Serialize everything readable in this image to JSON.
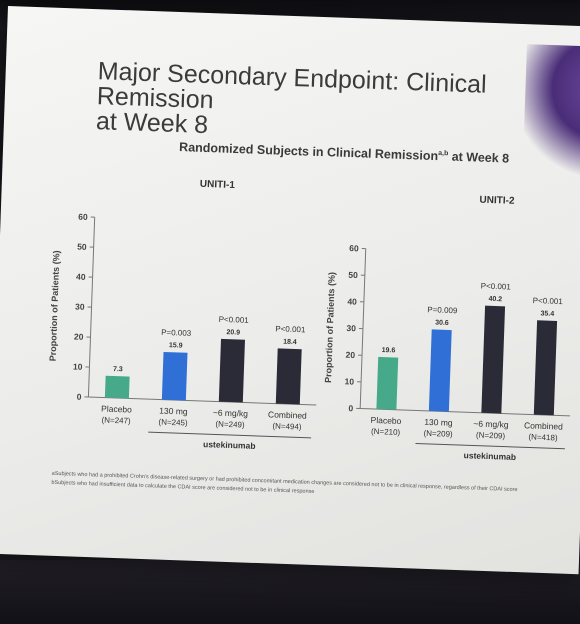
{
  "slide": {
    "title_line1": "Major Secondary Endpoint: Clinical Remission",
    "title_line2": "at Week 8",
    "subtitle": "Randomized Subjects in Clinical Remission",
    "subtitle_sup": "a,b",
    "subtitle_tail": " at Week 8",
    "footnotes": [
      "aSubjects who had a prohibited Crohn's disease-related surgery or had prohibited concomitant medication changes are considered not to be in clinical response, regardless of their CDAI score",
      "bSubjects who had insufficient data to calculate the CDAI score are considered not to be in clinical response"
    ]
  },
  "colors": {
    "placebo": "#45a98a",
    "dose_130": "#2f6fd6",
    "dose_6": "#2b2b38",
    "combined": "#2b2b38"
  },
  "chart_data": [
    {
      "type": "bar",
      "title": "UNITI-1",
      "ylabel": "Proportion of Patients (%)",
      "ylim": [
        0,
        60
      ],
      "yticks": [
        0,
        10,
        20,
        30,
        40,
        50,
        60
      ],
      "categories": [
        "Placebo",
        "130 mg",
        "~6 mg/kg",
        "Combined"
      ],
      "n_labels": [
        "(N=247)",
        "(N=245)",
        "(N=249)",
        "(N=494)"
      ],
      "values": [
        7.3,
        15.9,
        20.9,
        18.4
      ],
      "value_labels": [
        "7.3",
        "15.9",
        "20.9",
        "18.4"
      ],
      "p_values": [
        "",
        "P=0.003",
        "P<0.001",
        "P<0.001"
      ],
      "group_label": "ustekinumab"
    },
    {
      "type": "bar",
      "title": "UNITI-2",
      "ylabel": "Proportion of Patients (%)",
      "ylim": [
        0,
        60
      ],
      "yticks": [
        0,
        10,
        20,
        30,
        40,
        50,
        60
      ],
      "categories": [
        "Placebo",
        "130 mg",
        "~6 mg/kg",
        "Combined"
      ],
      "n_labels": [
        "(N=210)",
        "(N=209)",
        "(N=209)",
        "(N=418)"
      ],
      "values": [
        19.6,
        30.6,
        40.2,
        35.4
      ],
      "value_labels": [
        "19.6",
        "30.6",
        "40.2",
        "35.4"
      ],
      "p_values": [
        "",
        "P=0.009",
        "P<0.001",
        "P<0.001"
      ],
      "group_label": "ustekinumab"
    }
  ]
}
